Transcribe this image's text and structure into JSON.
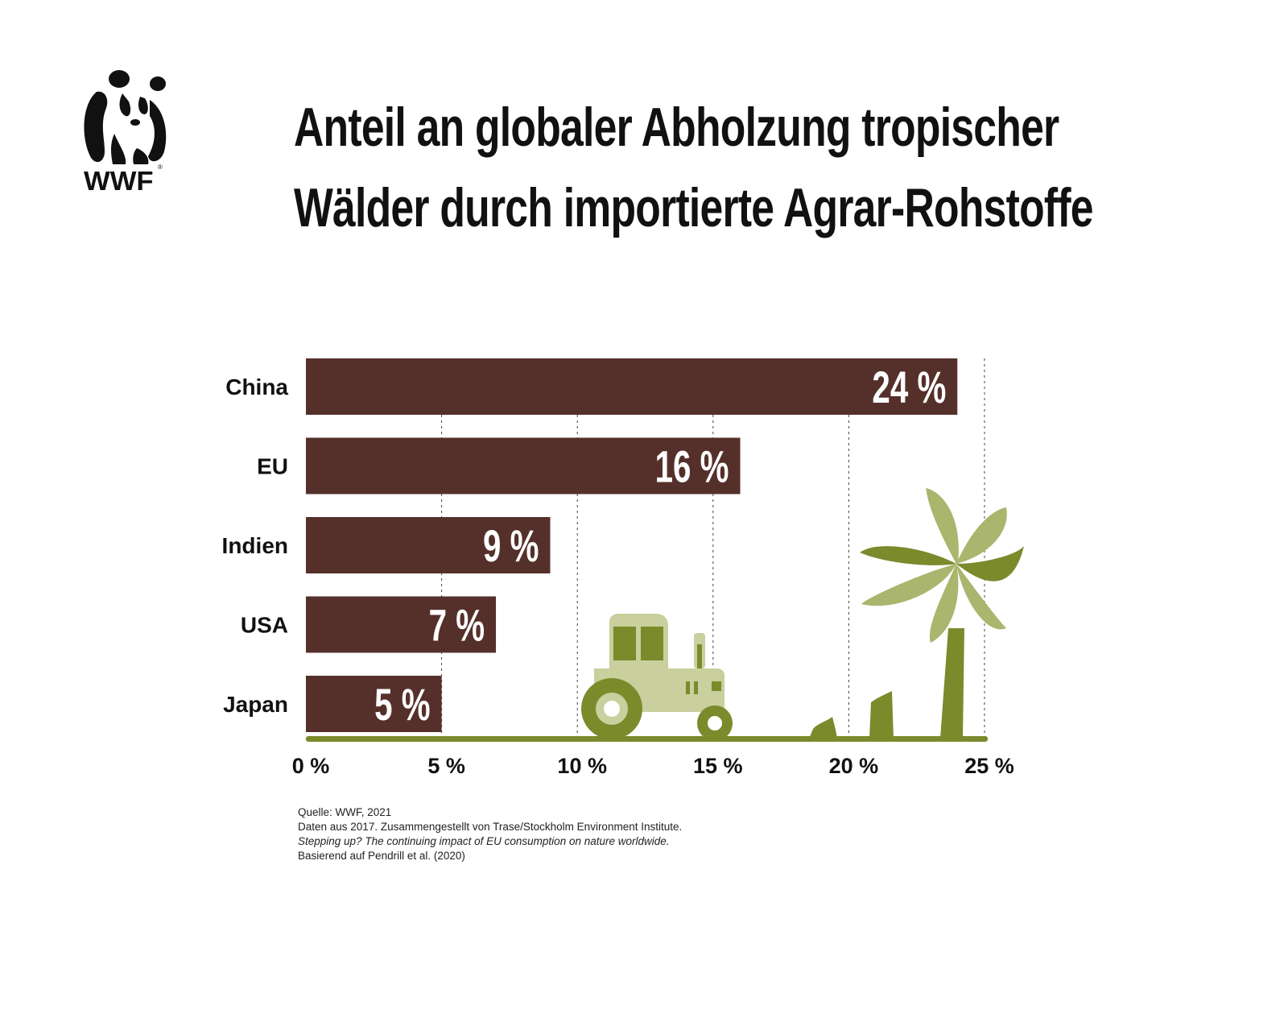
{
  "title": {
    "line1": "Anteil an globaler Abholzung tropischer",
    "line2": "Wälder durch importierte Agrar-Rohstoffe"
  },
  "logo": {
    "icon": "wwf-panda-icon",
    "text": "WWF"
  },
  "colors": {
    "bar": "#55302a",
    "ground": "#7b8b2c",
    "tractor_light": "#c9cf9d",
    "tractor_dark": "#7b8b2c",
    "palm_light": "#aab56d",
    "palm_dark": "#7b8b2c"
  },
  "chart_data": {
    "type": "bar",
    "orientation": "horizontal",
    "categories": [
      "China",
      "EU",
      "Indien",
      "USA",
      "Japan"
    ],
    "values": [
      24,
      16,
      9,
      7,
      5
    ],
    "value_labels": [
      "24 %",
      "16 %",
      "9 %",
      "7 %",
      "5 %"
    ],
    "xlim": [
      0,
      25
    ],
    "xticks": [
      0,
      5,
      10,
      15,
      20,
      25
    ],
    "xtick_labels": [
      "0 %",
      "5 %",
      "10 %",
      "15 %",
      "20 %",
      "25 %"
    ],
    "grid": "dotted vertical",
    "illustrations": [
      "tractor-icon",
      "palm-tree-icon"
    ]
  },
  "source": {
    "line1": "Quelle:  WWF, 2021",
    "line2": "Daten aus 2017. Zusammengestellt von Trase/Stockholm Environment Institute.",
    "line3": "Stepping up? The continuing impact of EU consumption on nature worldwide.",
    "line4": "Basierend auf Pendrill et al. (2020)"
  }
}
